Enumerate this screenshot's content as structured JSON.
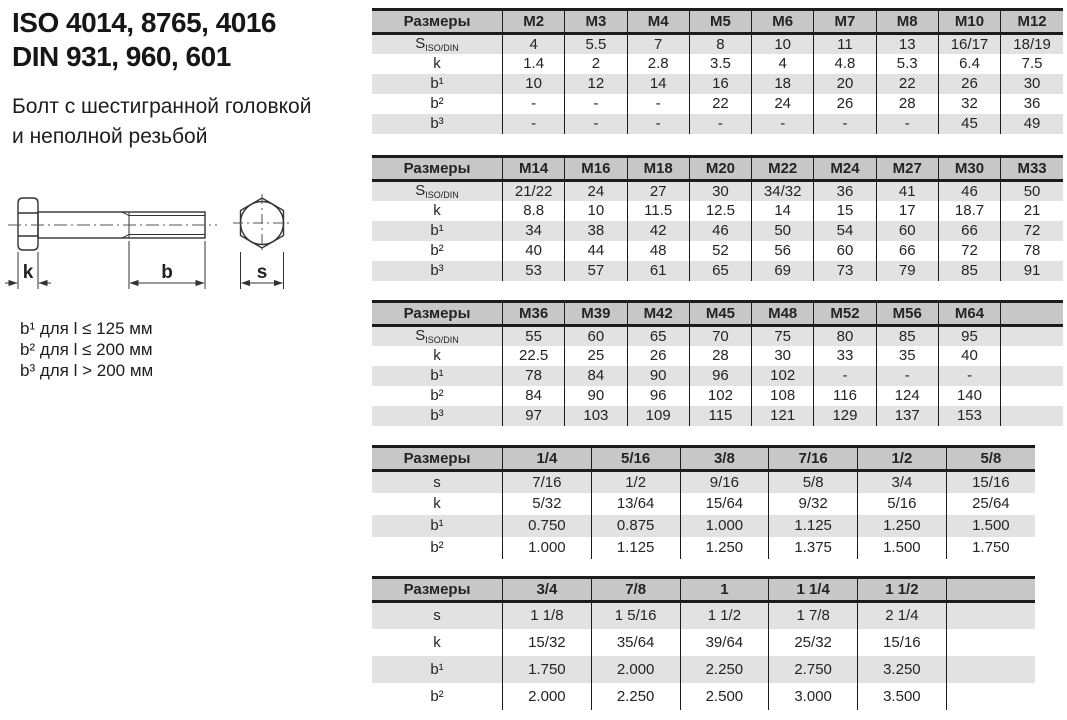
{
  "header": {
    "iso_line": "ISO 4014, 8765, 4016",
    "din_line": "DIN 931, 960, 601",
    "subtitle_line1": "Болт с шестигранной головкой",
    "subtitle_line2": "и неполной резьбой"
  },
  "diagram": {
    "labels": {
      "head_height": "k",
      "thread_length": "b",
      "width_across_flats": "s"
    }
  },
  "footnotes": [
    "b¹ для l ≤ 125 мм",
    "b² для l ≤ 200 мм",
    "b³ для l > 200 мм"
  ],
  "colors": {
    "header_bg": "#c7c7c7",
    "row_shaded": "#e2e2e2",
    "border": "#1c1c1c",
    "text": "#242424"
  },
  "tables": [
    {
      "corner_label": "Размеры",
      "columns": [
        "M2",
        "M3",
        "M4",
        "M5",
        "M6",
        "M7",
        "M8",
        "M10",
        "M12"
      ],
      "trailing_empty_column": false,
      "rows": [
        {
          "label": "S",
          "label_sub": "ISO/DIN",
          "values": [
            "4",
            "5.5",
            "7",
            "8",
            "10",
            "11",
            "13",
            "16/17",
            "18/19"
          ]
        },
        {
          "label": "k",
          "values": [
            "1.4",
            "2",
            "2.8",
            "3.5",
            "4",
            "4.8",
            "5.3",
            "6.4",
            "7.5"
          ]
        },
        {
          "label": "b¹",
          "values": [
            "10",
            "12",
            "14",
            "16",
            "18",
            "20",
            "22",
            "26",
            "30"
          ]
        },
        {
          "label": "b²",
          "values": [
            "-",
            "-",
            "-",
            "22",
            "24",
            "26",
            "28",
            "32",
            "36"
          ]
        },
        {
          "label": "b³",
          "values": [
            "-",
            "-",
            "-",
            "-",
            "-",
            "-",
            "-",
            "45",
            "49"
          ]
        }
      ]
    },
    {
      "corner_label": "Размеры",
      "columns": [
        "M14",
        "M16",
        "M18",
        "M20",
        "M22",
        "M24",
        "M27",
        "M30",
        "M33"
      ],
      "trailing_empty_column": false,
      "rows": [
        {
          "label": "S",
          "label_sub": "ISO/DIN",
          "values": [
            "21/22",
            "24",
            "27",
            "30",
            "34/32",
            "36",
            "41",
            "46",
            "50"
          ]
        },
        {
          "label": "k",
          "values": [
            "8.8",
            "10",
            "11.5",
            "12.5",
            "14",
            "15",
            "17",
            "18.7",
            "21"
          ]
        },
        {
          "label": "b¹",
          "values": [
            "34",
            "38",
            "42",
            "46",
            "50",
            "54",
            "60",
            "66",
            "72"
          ]
        },
        {
          "label": "b²",
          "values": [
            "40",
            "44",
            "48",
            "52",
            "56",
            "60",
            "66",
            "72",
            "78"
          ]
        },
        {
          "label": "b³",
          "values": [
            "53",
            "57",
            "61",
            "65",
            "69",
            "73",
            "79",
            "85",
            "91"
          ]
        }
      ]
    },
    {
      "corner_label": "Размеры",
      "columns": [
        "M36",
        "M39",
        "M42",
        "M45",
        "M48",
        "M52",
        "M56",
        "M64"
      ],
      "trailing_empty_column": true,
      "rows": [
        {
          "label": "S",
          "label_sub": "ISO/DIN",
          "values": [
            "55",
            "60",
            "65",
            "70",
            "75",
            "80",
            "85",
            "95"
          ]
        },
        {
          "label": "k",
          "values": [
            "22.5",
            "25",
            "26",
            "28",
            "30",
            "33",
            "35",
            "40"
          ]
        },
        {
          "label": "b¹",
          "values": [
            "78",
            "84",
            "90",
            "96",
            "102",
            "-",
            "-",
            "-"
          ]
        },
        {
          "label": "b²",
          "values": [
            "84",
            "90",
            "96",
            "102",
            "108",
            "116",
            "124",
            "140"
          ]
        },
        {
          "label": "b³",
          "values": [
            "97",
            "103",
            "109",
            "115",
            "121",
            "129",
            "137",
            "153"
          ]
        }
      ]
    },
    {
      "corner_label": "Размеры",
      "columns": [
        "1/4",
        "5/16",
        "3/8",
        "7/16",
        "1/2",
        "5/8"
      ],
      "trailing_empty_column": false,
      "rows": [
        {
          "label": "s",
          "values": [
            "7/16",
            "1/2",
            "9/16",
            "5/8",
            "3/4",
            "15/16"
          ]
        },
        {
          "label": "k",
          "values": [
            "5/32",
            "13/64",
            "15/64",
            "9/32",
            "5/16",
            "25/64"
          ]
        },
        {
          "label": "b¹",
          "values": [
            "0.750",
            "0.875",
            "1.000",
            "1.125",
            "1.250",
            "1.500"
          ]
        },
        {
          "label": "b²",
          "values": [
            "1.000",
            "1.125",
            "1.250",
            "1.375",
            "1.500",
            "1.750"
          ]
        }
      ]
    },
    {
      "corner_label": "Размеры",
      "columns": [
        "3/4",
        "7/8",
        "1",
        "1 1/4",
        "1 1/2"
      ],
      "trailing_empty_column": true,
      "rows": [
        {
          "label": "s",
          "values": [
            "1 1/8",
            "1 5/16",
            "1 1/2",
            "1 7/8",
            "2 1/4"
          ]
        },
        {
          "label": "k",
          "values": [
            "15/32",
            "35/64",
            "39/64",
            "25/32",
            "15/16"
          ]
        },
        {
          "label": "b¹",
          "values": [
            "1.750",
            "2.000",
            "2.250",
            "2.750",
            "3.250"
          ]
        },
        {
          "label": "b²",
          "values": [
            "2.000",
            "2.250",
            "2.500",
            "3.000",
            "3.500"
          ]
        }
      ]
    }
  ]
}
